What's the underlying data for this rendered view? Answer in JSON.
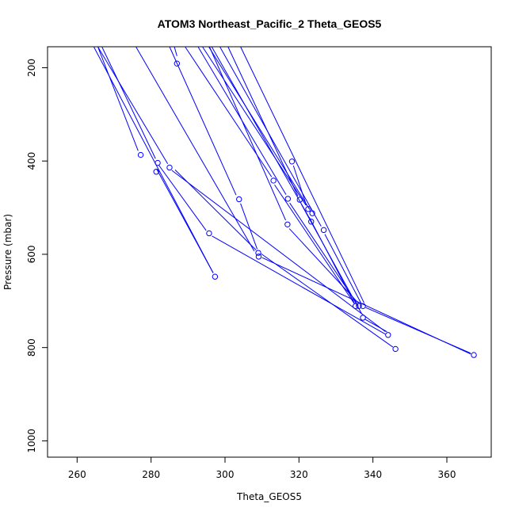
{
  "chart_data": {
    "type": "line",
    "title": "ATOM3 Northeast_Pacific_2 Theta_GEOS5",
    "xlabel": "Theta_GEOS5",
    "ylabel": "Pressure (mbar)",
    "xlim": [
      252,
      372
    ],
    "ylim": [
      1035,
      155
    ],
    "y_reversed": true,
    "x_ticks": [
      260,
      280,
      300,
      320,
      340,
      360
    ],
    "y_ticks": [
      200,
      400,
      600,
      800,
      1000
    ],
    "grid": false,
    "line_color": "#0000ff",
    "points": [
      {
        "x": 287.0,
        "y": 191
      },
      {
        "x": 277.2,
        "y": 387
      },
      {
        "x": 281.8,
        "y": 404
      },
      {
        "x": 281.4,
        "y": 423
      },
      {
        "x": 285.0,
        "y": 414
      },
      {
        "x": 295.7,
        "y": 555
      },
      {
        "x": 297.3,
        "y": 648
      },
      {
        "x": 303.8,
        "y": 482
      },
      {
        "x": 309.0,
        "y": 597
      },
      {
        "x": 309.1,
        "y": 605
      },
      {
        "x": 313.1,
        "y": 442
      },
      {
        "x": 317.0,
        "y": 481
      },
      {
        "x": 316.9,
        "y": 536
      },
      {
        "x": 318.1,
        "y": 401
      },
      {
        "x": 320.2,
        "y": 483
      },
      {
        "x": 322.5,
        "y": 503
      },
      {
        "x": 323.6,
        "y": 512
      },
      {
        "x": 323.3,
        "y": 530
      },
      {
        "x": 326.7,
        "y": 548
      },
      {
        "x": 335.3,
        "y": 711
      },
      {
        "x": 336.2,
        "y": 711
      },
      {
        "x": 337.3,
        "y": 711
      },
      {
        "x": 337.3,
        "y": 736
      },
      {
        "x": 344.1,
        "y": 773
      },
      {
        "x": 346.1,
        "y": 803
      },
      {
        "x": 367.3,
        "y": 816
      }
    ],
    "segments": [
      {
        "x1": 286.3,
        "y1": 155,
        "x2": 287.0,
        "y2": 175
      },
      {
        "x1": 265.6,
        "y1": 155,
        "x2": 276.5,
        "y2": 378
      },
      {
        "x1": 266.7,
        "y1": 155,
        "x2": 281.2,
        "y2": 395
      },
      {
        "x1": 264.5,
        "y1": 155,
        "x2": 296.8,
        "y2": 640
      },
      {
        "x1": 281.5,
        "y1": 417,
        "x2": 296.8,
        "y2": 640
      },
      {
        "x1": 265.6,
        "y1": 155,
        "x2": 284.5,
        "y2": 406
      },
      {
        "x1": 275.9,
        "y1": 155,
        "x2": 307.9,
        "y2": 593
      },
      {
        "x1": 286.5,
        "y1": 419,
        "x2": 308.4,
        "y2": 591
      },
      {
        "x1": 285.0,
        "y1": 155,
        "x2": 303.0,
        "y2": 473
      },
      {
        "x1": 304.2,
        "y1": 491,
        "x2": 308.7,
        "y2": 589
      },
      {
        "x1": 282.1,
        "y1": 409,
        "x2": 294.9,
        "y2": 549
      },
      {
        "x1": 289.2,
        "y1": 155,
        "x2": 312.6,
        "y2": 434
      },
      {
        "x1": 292.7,
        "y1": 155,
        "x2": 316.5,
        "y2": 472
      },
      {
        "x1": 295.8,
        "y1": 155,
        "x2": 316.4,
        "y2": 527
      },
      {
        "x1": 300.8,
        "y1": 155,
        "x2": 319.7,
        "y2": 475
      },
      {
        "x1": 293.9,
        "y1": 155,
        "x2": 321.9,
        "y2": 495
      },
      {
        "x1": 295.6,
        "y1": 155,
        "x2": 322.9,
        "y2": 504
      },
      {
        "x1": 296.4,
        "y1": 155,
        "x2": 322.8,
        "y2": 522
      },
      {
        "x1": 298.6,
        "y1": 155,
        "x2": 326.0,
        "y2": 540
      },
      {
        "x1": 318.5,
        "y1": 410,
        "x2": 322.0,
        "y2": 495
      },
      {
        "x1": 322.8,
        "y1": 521,
        "x2": 335.0,
        "y2": 705
      },
      {
        "x1": 313.4,
        "y1": 451,
        "x2": 334.9,
        "y2": 705
      },
      {
        "x1": 317.5,
        "y1": 490,
        "x2": 335.6,
        "y2": 705
      },
      {
        "x1": 317.4,
        "y1": 545,
        "x2": 336.1,
        "y2": 705
      },
      {
        "x1": 327.0,
        "y1": 557,
        "x2": 336.8,
        "y2": 705
      },
      {
        "x1": 320.6,
        "y1": 492,
        "x2": 337.0,
        "y2": 728
      },
      {
        "x1": 304.2,
        "y1": 155,
        "x2": 337.6,
        "y2": 704
      },
      {
        "x1": 296.5,
        "y1": 561,
        "x2": 343.3,
        "y2": 771
      },
      {
        "x1": 285.6,
        "y1": 420,
        "x2": 343.4,
        "y2": 766
      },
      {
        "x1": 309.8,
        "y1": 599,
        "x2": 345.4,
        "y2": 799
      },
      {
        "x1": 310.0,
        "y1": 607,
        "x2": 366.5,
        "y2": 814
      },
      {
        "x1": 338.0,
        "y1": 714,
        "x2": 366.4,
        "y2": 812
      },
      {
        "x1": 337.8,
        "y1": 739,
        "x2": 343.8,
        "y2": 766
      }
    ]
  }
}
